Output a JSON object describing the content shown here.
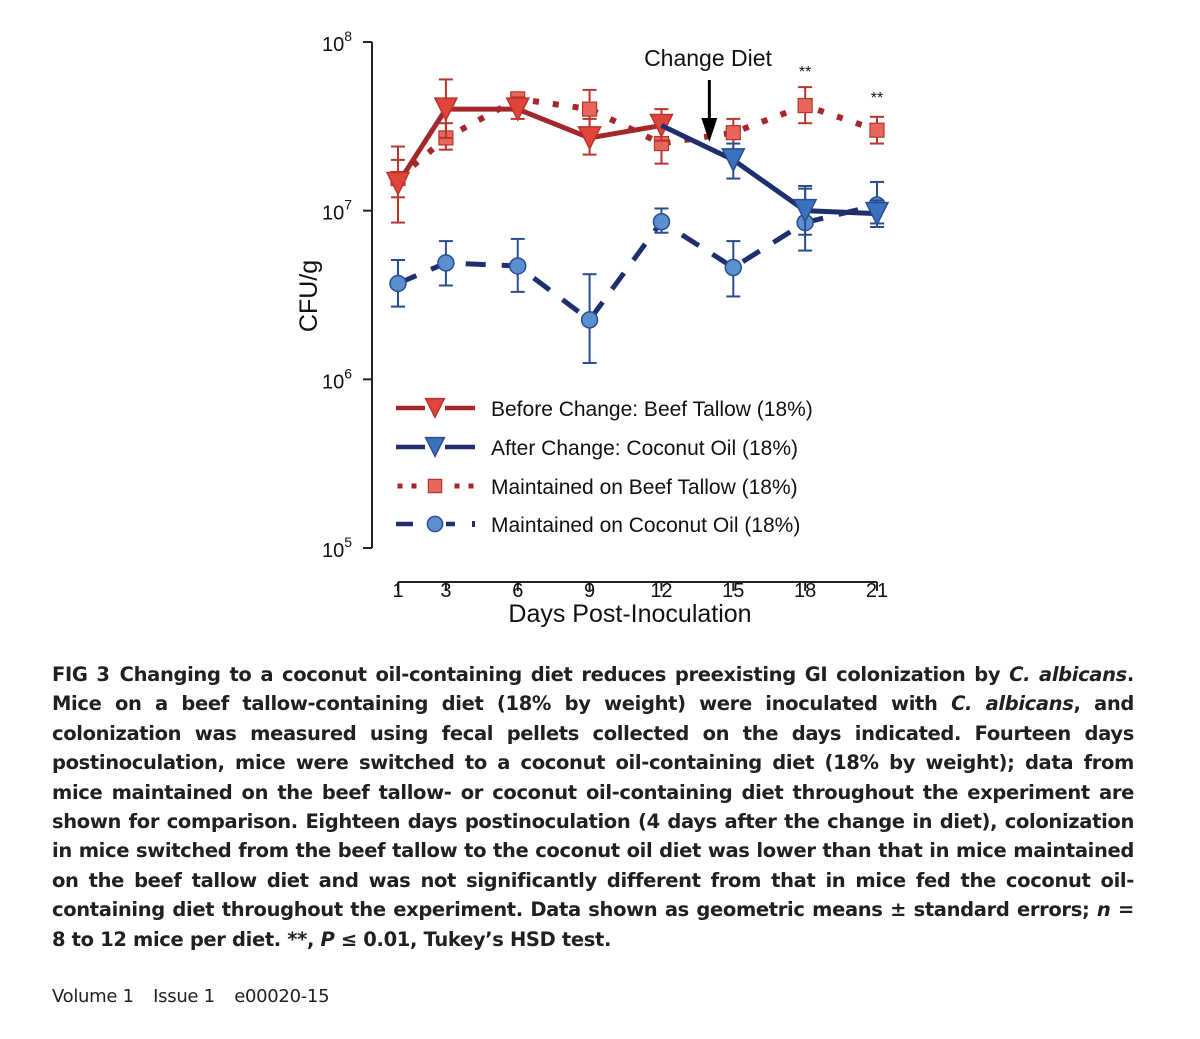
{
  "chart_data": {
    "type": "line",
    "title": "",
    "xlabel": "Days Post-Inoculation",
    "ylabel": "CFU/g",
    "yscale": "log",
    "ylim": [
      100000,
      100000000
    ],
    "xlim": [
      1,
      21
    ],
    "x_ticks": [
      1,
      3,
      6,
      9,
      12,
      15,
      18,
      21
    ],
    "x_tick_labels": [
      "1",
      "3",
      "6",
      "9",
      "12",
      "15",
      "18",
      "21"
    ],
    "y_ticks": [
      100000,
      1000000,
      10000000,
      100000000
    ],
    "y_tick_labels": [
      {
        "base": "10",
        "exp": "5"
      },
      {
        "base": "10",
        "exp": "6"
      },
      {
        "base": "10",
        "exp": "7"
      },
      {
        "base": "10",
        "exp": "8"
      }
    ],
    "grid": false,
    "legend_position": "bottom-left-inside",
    "annotation": {
      "text": "Change Diet",
      "x": 14
    },
    "significance": [
      {
        "x": 18,
        "text": "**"
      },
      {
        "x": 21,
        "text": "**"
      }
    ],
    "series": [
      {
        "name": "Before Change: Beef Tallow (18%)",
        "line_color": "#a3282b",
        "marker_color": "#e0453a",
        "marker": "triangle-down",
        "linestyle": "solid",
        "x": [
          1,
          3,
          6,
          9,
          12
        ],
        "values": [
          14500000,
          40000000,
          40000000,
          27000000,
          32000000
        ],
        "err_low": [
          8500000,
          27000000,
          35000000,
          21500000,
          26000000
        ],
        "err_high": [
          24000000,
          60000000,
          47000000,
          35000000,
          40000000
        ]
      },
      {
        "name": "After Change: Coconut Oil (18%)",
        "line_color": "#1f2f6e",
        "marker_color": "#3a72c0",
        "marker": "triangle-down",
        "linestyle": "solid",
        "x": [
          15,
          18,
          21
        ],
        "values": [
          20000000,
          10000000,
          9600000
        ],
        "err_low": [
          15500000,
          7200000,
          8000000
        ],
        "err_high": [
          25000000,
          14000000,
          11500000
        ],
        "connect_from": {
          "x": 12,
          "value": 32000000
        }
      },
      {
        "name": "Maintained on Beef Tallow (18%)",
        "line_color": "#a3282b",
        "marker_color": "#e8675c",
        "marker": "square",
        "linestyle": "dotted",
        "x": [
          1,
          3,
          6,
          9,
          12,
          15,
          18,
          21
        ],
        "values": [
          15500000,
          27000000,
          46000000,
          40000000,
          25000000,
          29000000,
          42000000,
          30000000
        ],
        "err_low": [
          12000000,
          23000000,
          43000000,
          30000000,
          19000000,
          23000000,
          33000000,
          25000000
        ],
        "err_high": [
          20000000,
          33000000,
          50000000,
          52000000,
          33000000,
          35000000,
          54000000,
          36000000
        ]
      },
      {
        "name": "Maintained on Coconut Oil (18%)",
        "line_color": "#1f2f6e",
        "marker_color": "#5b8fd0",
        "marker": "circle",
        "linestyle": "dashed",
        "x": [
          1,
          3,
          6,
          9,
          12,
          15,
          18,
          21
        ],
        "values": [
          3700000,
          4900000,
          4700000,
          2250000,
          8600000,
          4600000,
          8500000,
          10800000
        ],
        "err_low": [
          2700000,
          3600000,
          3300000,
          1250000,
          7400000,
          3100000,
          5800000,
          8400000
        ],
        "err_high": [
          5100000,
          6600000,
          6800000,
          4200000,
          10300000,
          6600000,
          13500000,
          14800000
        ]
      }
    ]
  },
  "caption": {
    "fig_label": "FIG 3",
    "title_before": "Changing to a coconut oil-containing diet reduces preexisting GI colonization by ",
    "title_italic": "C. albicans",
    "title_after": ".",
    "body_1": " Mice on a beef tallow-containing diet (18% by weight) were inoculated with ",
    "body_italic_1": "C. albicans",
    "body_2": ", and colonization was measured using fecal pellets collected on the days indicated. Fourteen days postinoculation, mice were switched to a coconut oil-containing diet (18% by weight); data from mice maintained on the beef tallow- or coconut oil-containing diet throughout the experiment are shown for comparison. Eighteen days postinoculation (4 days after the change in diet), colonization in mice switched from the beef tallow to the coconut oil diet was lower than that in mice maintained on the beef tallow diet and was not significantly different from that in mice fed the coconut oil-containing diet throughout the experiment. Data shown as geometric means ± standard errors; ",
    "n_italic": "n",
    "body_3": " = 8 to 12 mice per diet. **, ",
    "p_italic": "P",
    "body_4": " ≤ 0.01, Tukey’s HSD test."
  },
  "footer": {
    "volume": "Volume 1",
    "issue": "Issue 1",
    "article_id": "e00020-15"
  }
}
